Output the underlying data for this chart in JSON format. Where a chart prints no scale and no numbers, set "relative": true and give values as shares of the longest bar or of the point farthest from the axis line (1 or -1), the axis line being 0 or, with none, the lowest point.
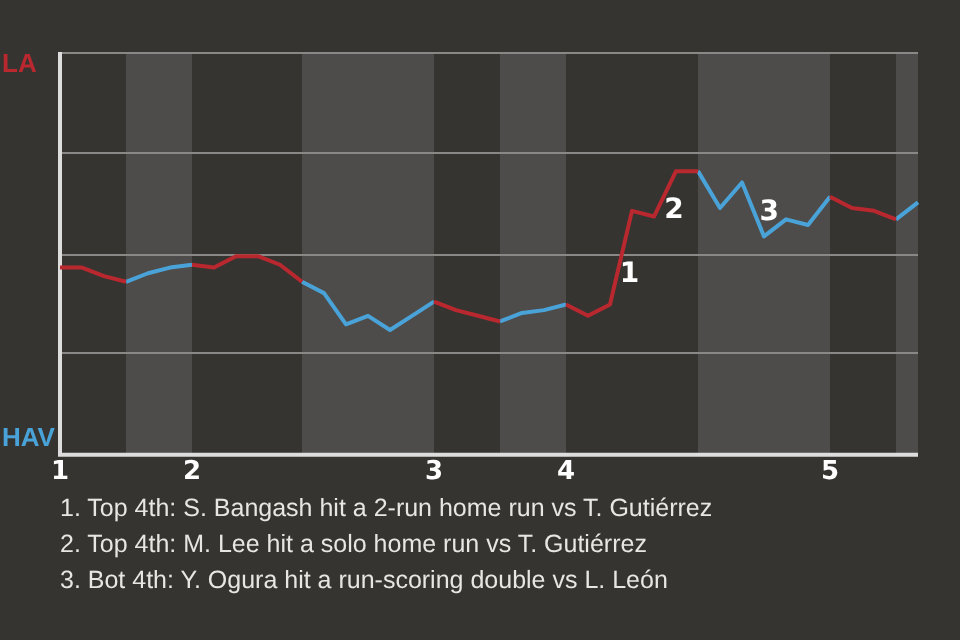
{
  "chart_data": {
    "type": "line",
    "categories": [
      "1",
      null,
      null,
      null,
      null,
      null,
      "2",
      null,
      null,
      null,
      null,
      null,
      null,
      null,
      null,
      null,
      null,
      "3",
      null,
      null,
      null,
      null,
      null,
      "4",
      null,
      null,
      null,
      null,
      null,
      null,
      null,
      null,
      null,
      null,
      null,
      "5",
      null,
      null,
      null,
      null
    ],
    "relative": true,
    "series": [
      {
        "color": "#b8282e",
        "values": [
          0.66,
          0.66,
          0.63,
          0.61,
          null,
          null,
          0.67,
          0.66,
          0.7,
          0.7,
          0.67,
          0.61,
          null,
          null,
          null,
          null,
          null,
          0.54,
          0.51,
          0.49,
          0.47,
          null,
          null,
          0.53,
          0.49,
          0.53,
          0.86,
          0.84,
          1,
          1,
          null,
          null,
          null,
          null,
          null,
          0.91,
          0.87,
          0.86,
          0.83,
          null
        ]
      },
      {
        "color": "#4aa3d8",
        "values": [
          null,
          null,
          null,
          0.61,
          0.64,
          0.66,
          0.67,
          null,
          null,
          null,
          null,
          0.61,
          0.57,
          0.46,
          0.49,
          0.44,
          0.49,
          0.54,
          null,
          null,
          0.47,
          0.5,
          0.51,
          0.53,
          null,
          null,
          null,
          null,
          null,
          1,
          0.87,
          0.96,
          0.77,
          0.83,
          0.81,
          0.91,
          null,
          null,
          0.83,
          0.89
        ]
      }
    ],
    "ref_lines": [
      {
        "axis": "y",
        "value": 0.36,
        "color": "#8a8886"
      },
      {
        "axis": "y",
        "value": 0.71,
        "color": "#8a8886"
      },
      {
        "axis": "y",
        "value": 1.07,
        "color": "#8a8886"
      },
      {
        "axis": "y",
        "value": 1.42,
        "color": "#8a8886"
      }
    ],
    "legend": false,
    "marker": "none",
    "annotations": [
      "LA",
      "HAV",
      "1",
      "2",
      "3",
      "1. Top 4th: S. Bangash hit a 2-run home run vs T. Gutiérrez",
      "2. Top 4th: M. Lee hit a solo home run vs T. Gutiérrez",
      "3. Bot 4th: Y. Ogura hit a run-scoring double vs L. León"
    ]
  }
}
